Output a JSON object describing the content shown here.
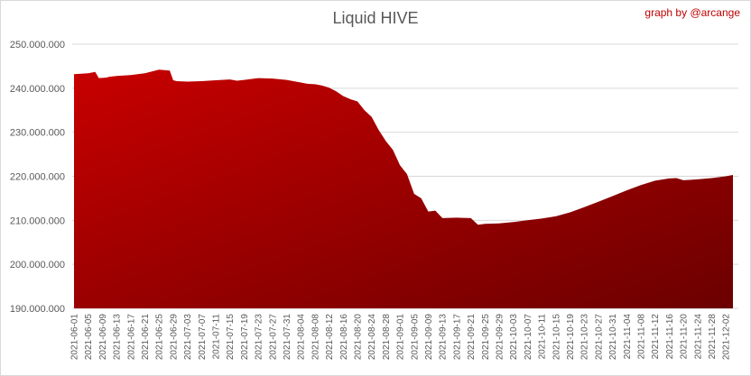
{
  "header": {
    "title": "Liquid HIVE",
    "credit": "graph by @arcange"
  },
  "colors": {
    "area_top": "#c80000",
    "area_bottom": "#6b0000",
    "gridline": "#d9d9d9",
    "axis_text": "#595959",
    "credit_text": "#c00000"
  },
  "chart_data": {
    "type": "area",
    "title": "Liquid HIVE",
    "xlabel": "",
    "ylabel": "",
    "ylim": [
      190000000,
      250000000
    ],
    "yticks": [
      190000000,
      200000000,
      210000000,
      220000000,
      230000000,
      240000000,
      250000000
    ],
    "ytick_labels": [
      "190.000.000",
      "200.000.000",
      "210.000.000",
      "220.000.000",
      "230.000.000",
      "240.000.000",
      "250.000.000"
    ],
    "grid": true,
    "legend": "none",
    "xtick_labels": [
      "2021-06-01",
      "2021-06-05",
      "2021-06-09",
      "2021-06-13",
      "2021-06-17",
      "2021-06-21",
      "2021-06-25",
      "2021-06-29",
      "2021-07-03",
      "2021-07-07",
      "2021-07-11",
      "2021-07-15",
      "2021-07-19",
      "2021-07-23",
      "2021-07-27",
      "2021-07-31",
      "2021-08-04",
      "2021-08-08",
      "2021-08-12",
      "2021-08-16",
      "2021-08-20",
      "2021-08-24",
      "2021-08-28",
      "2021-09-01",
      "2021-09-05",
      "2021-09-09",
      "2021-09-13",
      "2021-09-17",
      "2021-09-21",
      "2021-09-25",
      "2021-09-29",
      "2021-10-03",
      "2021-10-07",
      "2021-10-11",
      "2021-10-15",
      "2021-10-19",
      "2021-10-23",
      "2021-10-27",
      "2021-10-31",
      "2021-11-04",
      "2021-11-08",
      "2021-11-12",
      "2021-11-16",
      "2021-11-20",
      "2021-11-24",
      "2021-11-28",
      "2021-12-02"
    ],
    "x": [
      "2021-06-01",
      "2021-06-05",
      "2021-06-07",
      "2021-06-08",
      "2021-06-10",
      "2021-06-11",
      "2021-06-13",
      "2021-06-17",
      "2021-06-21",
      "2021-06-25",
      "2021-06-28",
      "2021-06-29",
      "2021-06-30",
      "2021-07-03",
      "2021-07-07",
      "2021-07-11",
      "2021-07-15",
      "2021-07-17",
      "2021-07-19",
      "2021-07-23",
      "2021-07-27",
      "2021-07-31",
      "2021-08-04",
      "2021-08-06",
      "2021-08-08",
      "2021-08-10",
      "2021-08-12",
      "2021-08-14",
      "2021-08-16",
      "2021-08-18",
      "2021-08-20",
      "2021-08-22",
      "2021-08-24",
      "2021-08-26",
      "2021-08-28",
      "2021-08-30",
      "2021-09-01",
      "2021-09-03",
      "2021-09-05",
      "2021-09-07",
      "2021-09-09",
      "2021-09-11",
      "2021-09-13",
      "2021-09-17",
      "2021-09-21",
      "2021-09-23",
      "2021-09-25",
      "2021-09-29",
      "2021-10-03",
      "2021-10-07",
      "2021-10-11",
      "2021-10-15",
      "2021-10-19",
      "2021-10-23",
      "2021-10-27",
      "2021-10-31",
      "2021-11-04",
      "2021-11-08",
      "2021-11-12",
      "2021-11-16",
      "2021-11-18",
      "2021-11-20",
      "2021-11-24",
      "2021-11-28",
      "2021-12-02",
      "2021-12-04"
    ],
    "series": [
      {
        "values": [
          243.2,
          243.4,
          243.7,
          242.3,
          242.4,
          242.6,
          242.8,
          243.0,
          243.4,
          244.2,
          244.0,
          241.8,
          241.6,
          241.5,
          241.6,
          241.8,
          242.0,
          241.7,
          241.9,
          242.3,
          242.2,
          241.9,
          241.3,
          241.0,
          240.9,
          240.6,
          240.1,
          239.3,
          238.2,
          237.5,
          237.0,
          235.0,
          233.5,
          230.5,
          228.0,
          226.0,
          222.5,
          220.5,
          216.0,
          215.0,
          212.0,
          212.2,
          210.5,
          210.6,
          210.5,
          209.0,
          209.2,
          209.3,
          209.6,
          210.0,
          210.4,
          210.9,
          211.8,
          213.0,
          214.2,
          215.5,
          216.8,
          218.0,
          219.0,
          219.5,
          219.6,
          219.1,
          219.3,
          219.6,
          220.0,
          220.3
        ],
        "unit_multiplier": 1000000
      }
    ]
  }
}
